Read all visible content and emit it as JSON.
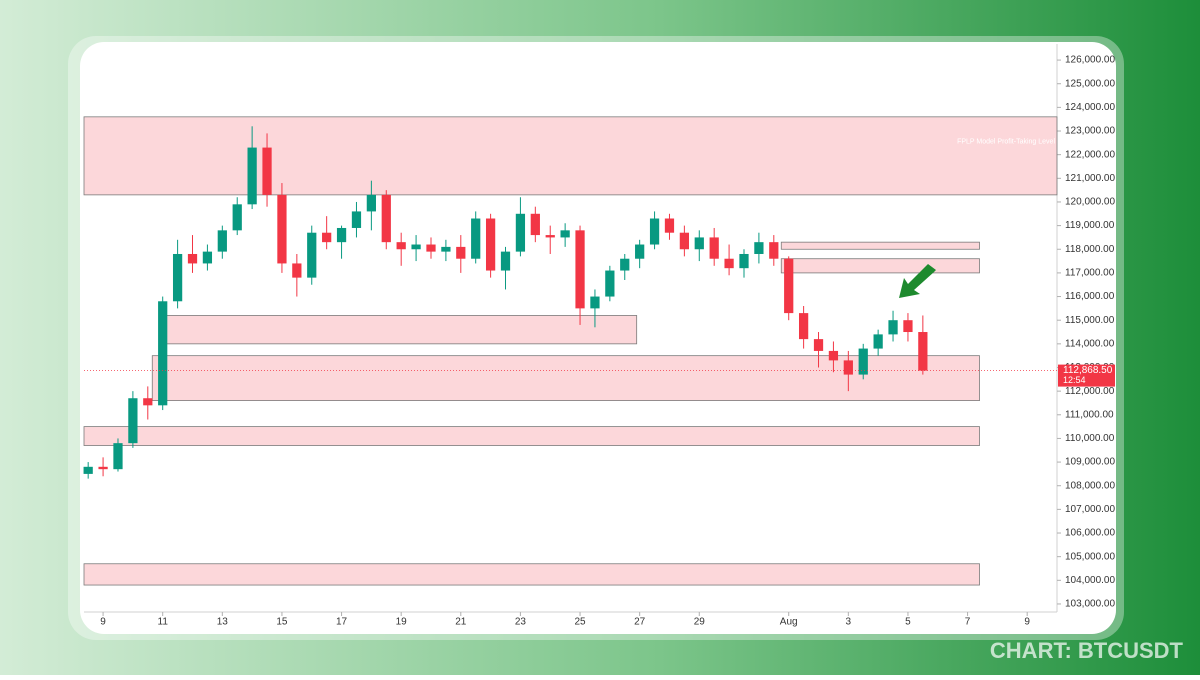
{
  "chart_data": {
    "type": "candlestick",
    "watermark": "CHART: BTCUSDT",
    "up_color": "#089981",
    "down_color": "#f23645",
    "x": [
      8.5,
      9,
      9.5,
      10,
      10.5,
      11,
      11.5,
      12,
      12.5,
      13,
      13.5,
      14,
      14.5,
      15,
      15.5,
      16,
      16.5,
      17,
      17.5,
      18,
      18.5,
      19,
      19.5,
      20,
      20.5,
      21,
      21.5,
      22,
      22.5,
      23,
      23.5,
      24,
      24.5,
      25,
      25.5,
      26,
      26.5,
      27,
      27.5,
      28,
      28.5,
      29,
      29.5,
      30,
      30.5,
      31,
      31.5,
      32,
      32.5,
      33,
      33.5,
      34,
      34.5,
      35,
      35.5,
      36,
      36.5
    ],
    "open": [
      108500,
      108800,
      108700,
      109800,
      111700,
      111400,
      115800,
      117800,
      117400,
      117900,
      118800,
      119900,
      122300,
      120300,
      117400,
      116800,
      118700,
      118300,
      118900,
      119600,
      120300,
      118300,
      118000,
      118200,
      117900,
      118100,
      117600,
      119300,
      117100,
      117900,
      119500,
      118600,
      118500,
      118800,
      115500,
      116000,
      117100,
      117600,
      118200,
      119300,
      118700,
      118000,
      118500,
      117600,
      117200,
      117800,
      118300,
      117600,
      115300,
      114200,
      113700,
      113300,
      112700,
      113800,
      114400,
      115000,
      114500
    ],
    "high": [
      109000,
      109200,
      110000,
      112000,
      112200,
      116000,
      118400,
      118600,
      118200,
      119000,
      120200,
      123200,
      122900,
      120800,
      117800,
      119000,
      119400,
      119000,
      120000,
      120900,
      120500,
      118700,
      118600,
      118500,
      118400,
      118600,
      119600,
      119500,
      118100,
      120200,
      119800,
      119000,
      119100,
      119000,
      116300,
      117300,
      117800,
      118400,
      119600,
      119500,
      119000,
      118800,
      118900,
      118200,
      118000,
      118700,
      118600,
      117700,
      115600,
      114500,
      114100,
      113700,
      114000,
      114600,
      115400,
      115300,
      115200
    ],
    "low": [
      108300,
      108400,
      108600,
      109600,
      110800,
      111200,
      115500,
      117000,
      117100,
      117600,
      118600,
      119700,
      119800,
      117000,
      116000,
      116500,
      118000,
      117600,
      118500,
      118800,
      118000,
      117300,
      117500,
      117600,
      117500,
      117000,
      117400,
      116800,
      116300,
      117700,
      118300,
      117800,
      118100,
      114800,
      114700,
      115800,
      116700,
      117200,
      118000,
      118400,
      117700,
      117500,
      117300,
      116900,
      116800,
      117400,
      117300,
      115000,
      113800,
      113000,
      112800,
      112000,
      112500,
      113500,
      114100,
      114100,
      112700
    ],
    "close": [
      108800,
      108700,
      109800,
      111700,
      111400,
      115800,
      117800,
      117400,
      117900,
      118800,
      119900,
      122300,
      120300,
      117400,
      116800,
      118700,
      118300,
      118900,
      119600,
      120300,
      118300,
      118000,
      118200,
      117900,
      118100,
      117600,
      119300,
      117100,
      117900,
      119500,
      118600,
      118500,
      118800,
      115500,
      116000,
      117100,
      117600,
      118200,
      119300,
      118700,
      118000,
      118500,
      117600,
      117200,
      117800,
      118300,
      117600,
      115300,
      114200,
      113700,
      113300,
      112700,
      113800,
      114400,
      115000,
      114500,
      112868.5
    ],
    "xlim": [
      8.36,
      41.0
    ],
    "xticks": [
      9,
      11,
      13,
      15,
      17,
      19,
      21,
      23,
      25,
      27,
      29,
      {
        "value": 32,
        "label": "Aug"
      },
      {
        "value": 34,
        "label": "3"
      },
      {
        "value": 36,
        "label": "5"
      },
      {
        "value": 38,
        "label": "7"
      },
      {
        "value": 40,
        "label": "9"
      }
    ],
    "ylim": [
      102660,
      126680
    ],
    "yticks": [
      {
        "value": 103000,
        "label": "103,000.00"
      },
      {
        "value": 104000,
        "label": "104,000.00"
      },
      {
        "value": 105000,
        "label": "105,000.00"
      },
      {
        "value": 106000,
        "label": "106,000.00"
      },
      {
        "value": 107000,
        "label": "107,000.00"
      },
      {
        "value": 108000,
        "label": "108,000.00"
      },
      {
        "value": 109000,
        "label": "109,000.00"
      },
      {
        "value": 110000,
        "label": "110,000.00"
      },
      {
        "value": 111000,
        "label": "111,000.00"
      },
      {
        "value": 112000,
        "label": "112,000.00"
      },
      {
        "value": 113000,
        "label": "113,000.00"
      },
      {
        "value": 114000,
        "label": "114,000.00"
      },
      {
        "value": 115000,
        "label": "115,000.00"
      },
      {
        "value": 116000,
        "label": "116,000.00"
      },
      {
        "value": 117000,
        "label": "117,000.00"
      },
      {
        "value": 118000,
        "label": "118,000.00"
      },
      {
        "value": 119000,
        "label": "119,000.00"
      },
      {
        "value": 120000,
        "label": "120,000.00"
      },
      {
        "value": 121000,
        "label": "121,000.00"
      },
      {
        "value": 122000,
        "label": "122,000.00"
      },
      {
        "value": 123000,
        "label": "123,000.00"
      },
      {
        "value": 124000,
        "label": "124,000.00"
      },
      {
        "value": 125000,
        "label": "125,000.00"
      },
      {
        "value": 126000,
        "label": "126,000.00"
      }
    ],
    "zones": [
      {
        "x": [
          8.36,
          41.0
        ],
        "y": [
          120300,
          123600
        ],
        "label": "FPLP Model Profit-Taking Level"
      },
      {
        "x": [
          10.9,
          26.9
        ],
        "y": [
          114000,
          115200
        ]
      },
      {
        "x": [
          10.65,
          38.4
        ],
        "y": [
          111600,
          113500
        ]
      },
      {
        "x": [
          8.36,
          38.4
        ],
        "y": [
          109700,
          110500
        ]
      },
      {
        "x": [
          8.36,
          38.4
        ],
        "y": [
          103800,
          104700
        ]
      },
      {
        "x": [
          31.75,
          38.4
        ],
        "y": [
          118000,
          118300
        ]
      },
      {
        "x": [
          31.75,
          38.4
        ],
        "y": [
          117000,
          117600
        ]
      }
    ],
    "price_tag": {
      "value": 112868.5,
      "label": "112,868.50",
      "timer": "12:54"
    }
  }
}
